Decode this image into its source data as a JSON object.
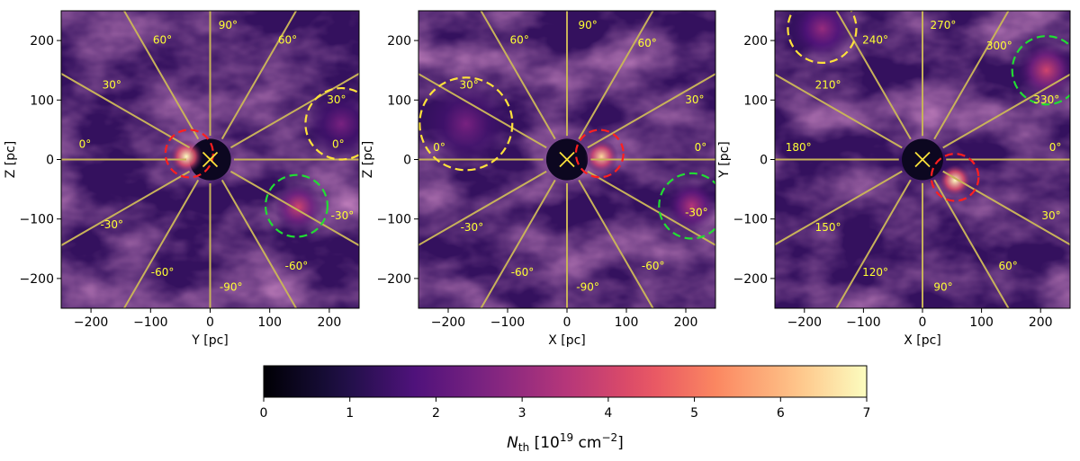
{
  "chart_data": {
    "type": "heatmap",
    "colormap": "magma",
    "colorbar": {
      "label_symbol": "N",
      "label_subscript": "th",
      "label_unit_prefix": "[10",
      "label_unit_exp": "19",
      "label_unit_mid": " cm",
      "label_unit_exp2": "−2",
      "label_unit_suffix": "]",
      "min": 0,
      "max": 7,
      "ticks": [
        0,
        1,
        2,
        3,
        4,
        5,
        6,
        7
      ]
    },
    "panels": [
      {
        "id": "yz",
        "xlabel": "Y [pc]",
        "ylabel": "Z [pc]",
        "xlim": [
          -250,
          250
        ],
        "ylim": [
          -250,
          250
        ],
        "xticks": [
          -200,
          -100,
          0,
          100,
          200
        ],
        "yticks": [
          -200,
          -100,
          0,
          100,
          200
        ],
        "center_marker": [
          0,
          0
        ],
        "ray_angles_deg": [
          0,
          30,
          60,
          90,
          120,
          150,
          180,
          210,
          240,
          270,
          300,
          330
        ],
        "angle_labels": [
          {
            "text": "0°",
            "x": 215,
            "y": 25
          },
          {
            "text": "30°",
            "x": 212,
            "y": 100
          },
          {
            "text": "60°",
            "x": 130,
            "y": 200
          },
          {
            "text": "90°",
            "x": 30,
            "y": 225
          },
          {
            "text": "60°",
            "x": -80,
            "y": 200
          },
          {
            "text": "30°",
            "x": -165,
            "y": 125
          },
          {
            "text": "0°",
            "x": -210,
            "y": 25
          },
          {
            "text": "-30°",
            "x": -165,
            "y": -110
          },
          {
            "text": "-60°",
            "x": -80,
            "y": -190
          },
          {
            "text": "-90°",
            "x": 35,
            "y": -215
          },
          {
            "text": "-60°",
            "x": 145,
            "y": -180
          },
          {
            "text": "-30°",
            "x": 222,
            "y": -95
          }
        ],
        "circles": [
          {
            "color": "red",
            "cx": -35,
            "cy": 10,
            "r": 40
          },
          {
            "color": "yellow",
            "cx": 220,
            "cy": 60,
            "r": 60
          },
          {
            "color": "green",
            "cx": 145,
            "cy": -78,
            "r": 52
          }
        ],
        "bright_spots": [
          {
            "cx": -40,
            "cy": 5,
            "r": 28,
            "level": 7
          },
          {
            "cx": 148,
            "cy": -80,
            "r": 40,
            "level": 4
          },
          {
            "cx": 220,
            "cy": 60,
            "r": 55,
            "level": 2.5
          }
        ]
      },
      {
        "id": "xz",
        "xlabel": "X [pc]",
        "ylabel": "Z [pc]",
        "xlim": [
          -250,
          250
        ],
        "ylim": [
          -250,
          250
        ],
        "xticks": [
          -200,
          -100,
          0,
          100,
          200
        ],
        "yticks": [
          -200,
          -100,
          0,
          100,
          200
        ],
        "center_marker": [
          0,
          0
        ],
        "ray_angles_deg": [
          0,
          30,
          60,
          90,
          120,
          150,
          180,
          210,
          240,
          270,
          300,
          330
        ],
        "angle_labels": [
          {
            "text": "0°",
            "x": 225,
            "y": 20
          },
          {
            "text": "30°",
            "x": 215,
            "y": 100
          },
          {
            "text": "60°",
            "x": 135,
            "y": 195
          },
          {
            "text": "90°",
            "x": 35,
            "y": 225
          },
          {
            "text": "60°",
            "x": -80,
            "y": 200
          },
          {
            "text": "30°",
            "x": -165,
            "y": 125
          },
          {
            "text": "0°",
            "x": -215,
            "y": 20
          },
          {
            "text": "-30°",
            "x": -160,
            "y": -115
          },
          {
            "text": "-60°",
            "x": -75,
            "y": -190
          },
          {
            "text": "-90°",
            "x": 35,
            "y": -215
          },
          {
            "text": "-60°",
            "x": 145,
            "y": -180
          },
          {
            "text": "-30°",
            "x": 218,
            "y": -90
          }
        ],
        "circles": [
          {
            "color": "red",
            "cx": 55,
            "cy": 10,
            "r": 40
          },
          {
            "color": "yellow",
            "cx": -170,
            "cy": 60,
            "r": 78
          },
          {
            "color": "green",
            "cx": 210,
            "cy": -78,
            "r": 55
          }
        ],
        "bright_spots": [
          {
            "cx": 58,
            "cy": 5,
            "r": 28,
            "level": 6.5
          },
          {
            "cx": 210,
            "cy": -78,
            "r": 42,
            "level": 3.5
          },
          {
            "cx": -170,
            "cy": 60,
            "r": 70,
            "level": 2.5
          }
        ]
      },
      {
        "id": "xy",
        "xlabel": "X [pc]",
        "ylabel": "Y [pc]",
        "xlim": [
          -250,
          250
        ],
        "ylim": [
          -250,
          250
        ],
        "xticks": [
          -200,
          -100,
          0,
          100,
          200
        ],
        "yticks": [
          -200,
          -100,
          0,
          100,
          200
        ],
        "center_marker": [
          0,
          0
        ],
        "ray_angles_deg": [
          0,
          30,
          60,
          90,
          120,
          150,
          180,
          210,
          240,
          270,
          300,
          330
        ],
        "angle_labels": [
          {
            "text": "0°",
            "x": 225,
            "y": 20
          },
          {
            "text": "330°",
            "x": 210,
            "y": 100
          },
          {
            "text": "300°",
            "x": 130,
            "y": 190
          },
          {
            "text": "270°",
            "x": 35,
            "y": 225
          },
          {
            "text": "240°",
            "x": -80,
            "y": 200
          },
          {
            "text": "210°",
            "x": -160,
            "y": 125
          },
          {
            "text": "180°",
            "x": -210,
            "y": 20
          },
          {
            "text": "150°",
            "x": -160,
            "y": -115
          },
          {
            "text": "120°",
            "x": -80,
            "y": -190
          },
          {
            "text": "90°",
            "x": 35,
            "y": -215
          },
          {
            "text": "60°",
            "x": 145,
            "y": -180
          },
          {
            "text": "30°",
            "x": 218,
            "y": -95
          }
        ],
        "circles": [
          {
            "color": "red",
            "cx": 55,
            "cy": -30,
            "r": 40
          },
          {
            "color": "yellow",
            "cx": -170,
            "cy": 220,
            "r": 58
          },
          {
            "color": "green",
            "cx": 210,
            "cy": 150,
            "r": 58
          }
        ],
        "bright_spots": [
          {
            "cx": 55,
            "cy": -35,
            "r": 28,
            "level": 7
          },
          {
            "cx": 210,
            "cy": 150,
            "r": 48,
            "level": 4
          },
          {
            "cx": -170,
            "cy": 220,
            "r": 50,
            "level": 3
          }
        ]
      }
    ]
  }
}
